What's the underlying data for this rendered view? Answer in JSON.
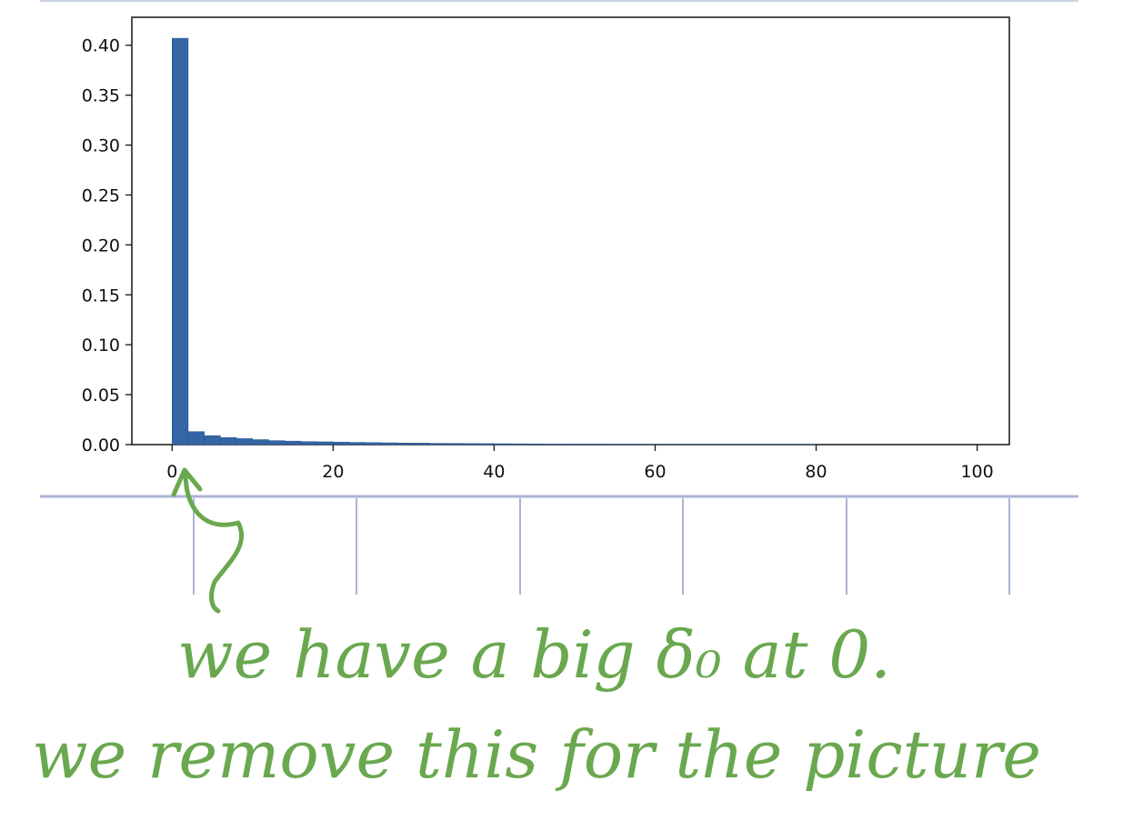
{
  "chart_data": {
    "type": "bar",
    "title": "",
    "xlabel": "",
    "ylabel": "",
    "xlim": [
      -5,
      104
    ],
    "ylim": [
      0,
      0.428
    ],
    "xticks": [
      0,
      20,
      40,
      60,
      80,
      100
    ],
    "yticks": [
      0.0,
      0.05,
      0.1,
      0.15,
      0.2,
      0.25,
      0.3,
      0.35,
      0.4
    ],
    "xtick_labels": [
      "0",
      "20",
      "40",
      "60",
      "80",
      "100"
    ],
    "ytick_labels": [
      "0.00",
      "0.05",
      "0.10",
      "0.15",
      "0.20",
      "0.25",
      "0.30",
      "0.35",
      "0.40"
    ],
    "bin_width": 2,
    "bin_start": 0,
    "values": [
      0.407,
      0.013,
      0.009,
      0.007,
      0.006,
      0.005,
      0.004,
      0.0035,
      0.003,
      0.0028,
      0.0025,
      0.0022,
      0.002,
      0.0018,
      0.0016,
      0.0015,
      0.0013,
      0.0012,
      0.0011,
      0.001,
      0.0009,
      0.0008,
      0.0007,
      0.0006,
      0.0005,
      0.0004,
      0.0004,
      0.0003,
      0.0003,
      0.0002,
      0.0002,
      0.0002,
      0.0001,
      0.0001,
      0.0001,
      0.0001,
      0.0001,
      0.0001,
      0.0001,
      0.0001
    ],
    "bar_color": "#3465a4",
    "grid": false
  },
  "annotation": {
    "line1": "we have a big δ₀ at 0.",
    "line2": "we remove this for the picture",
    "color": "#6aa84f"
  },
  "page_lines_color": "#aab4d4"
}
